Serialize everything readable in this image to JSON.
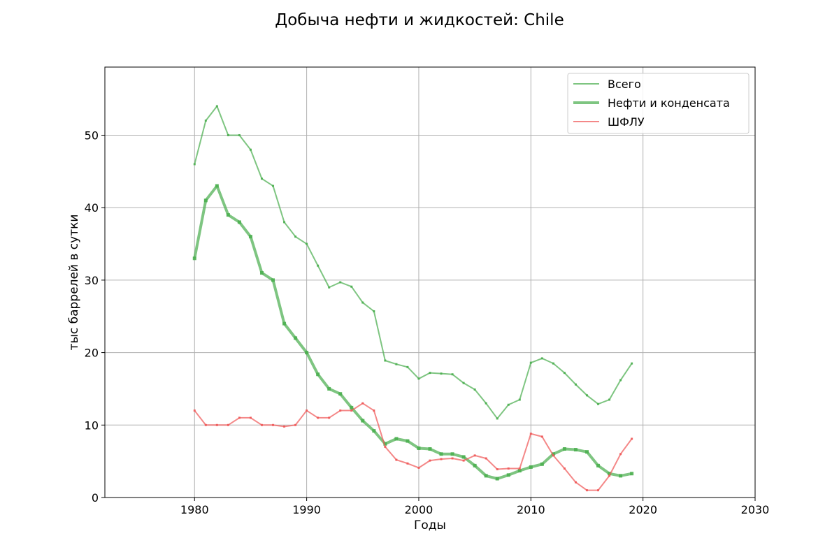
{
  "chart_data": {
    "type": "line",
    "title": "Добыча нефти и жидкостей: Chile",
    "xlabel": "Годы",
    "ylabel": "тыс баррелей в сутки",
    "xlim": [
      1972,
      2030
    ],
    "ylim": [
      0,
      59.4
    ],
    "x_ticks": [
      1980,
      1990,
      2000,
      2010,
      2020,
      2030
    ],
    "y_ticks": [
      0,
      10,
      20,
      30,
      40,
      50
    ],
    "grid": true,
    "legend_position": "top-right",
    "x": [
      1980,
      1981,
      1982,
      1983,
      1984,
      1985,
      1986,
      1987,
      1988,
      1989,
      1990,
      1991,
      1992,
      1993,
      1994,
      1995,
      1996,
      1997,
      1998,
      1999,
      2000,
      2001,
      2002,
      2003,
      2004,
      2005,
      2006,
      2007,
      2008,
      2009,
      2010,
      2011,
      2012,
      2013,
      2014,
      2015,
      2016,
      2017,
      2018,
      2019
    ],
    "series": [
      {
        "name": "Всего",
        "color": "#4caf50",
        "width": 2,
        "values": [
          46,
          52,
          54,
          50,
          50,
          48,
          44,
          43,
          38,
          36,
          35,
          32,
          29,
          29.7,
          29.1,
          26.9,
          25.7,
          18.9,
          18.4,
          18,
          16.4,
          17.2,
          17.1,
          17,
          15.8,
          14.9,
          13,
          10.9,
          12.8,
          13.5,
          18.6,
          19.2,
          18.5,
          17.2,
          15.6,
          14.1,
          12.9,
          13.5,
          16.2,
          18.5
        ]
      },
      {
        "name": "Нефти и конденсата",
        "color": "#4caf50",
        "width": 4,
        "values": [
          33,
          41,
          43,
          39,
          38,
          36,
          31,
          30,
          24,
          22,
          20,
          17,
          15,
          14.3,
          12.4,
          10.6,
          9.2,
          7.4,
          8.1,
          7.8,
          6.8,
          6.7,
          6,
          6,
          5.6,
          4.4,
          3,
          2.6,
          3.1,
          3.7,
          4.2,
          4.6,
          6,
          6.7,
          6.6,
          6.3,
          4.4,
          3.3,
          3,
          3.3
        ]
      },
      {
        "name": "ШФЛУ",
        "color": "#f05a5a",
        "width": 2,
        "values": [
          12,
          10,
          10,
          10,
          11,
          11,
          10,
          10,
          9.8,
          10,
          12,
          11,
          11,
          12,
          12,
          13,
          12,
          7,
          5.2,
          4.7,
          4.1,
          5.1,
          5.3,
          5.4,
          5.1,
          5.8,
          5.4,
          3.9,
          4,
          4,
          8.8,
          8.4,
          5.8,
          4,
          2.1,
          1,
          1,
          3,
          6,
          8.1
        ]
      }
    ]
  }
}
